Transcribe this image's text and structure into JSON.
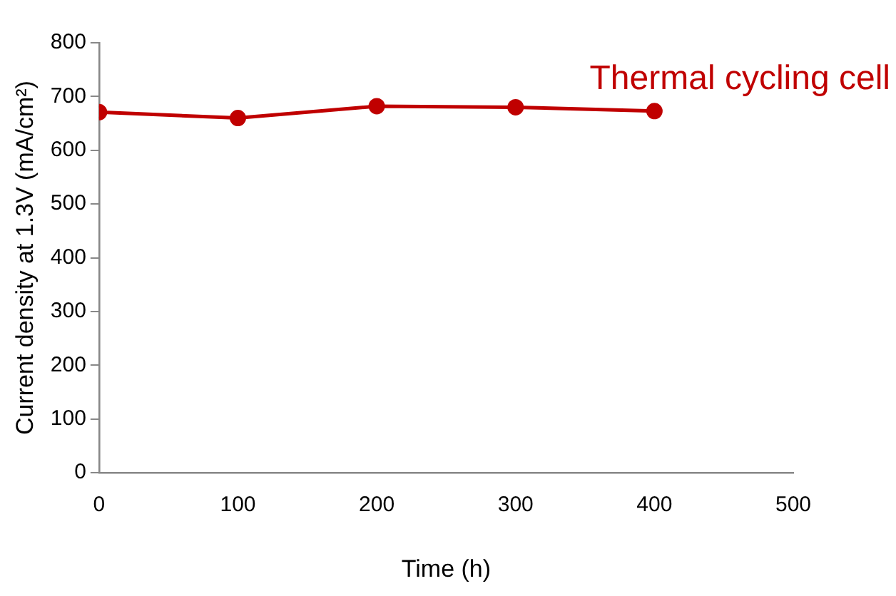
{
  "chart_data": {
    "type": "line",
    "xlabel": "Time (h)",
    "ylabel": "Current density at 1.3V (mA/cm²)",
    "x": [
      0,
      100,
      200,
      300,
      400
    ],
    "series": [
      {
        "name": "Thermal cycling cell",
        "color": "#c00000",
        "values": [
          671,
          660,
          682,
          680,
          673
        ]
      }
    ],
    "xlim": [
      0,
      500
    ],
    "xticks": [
      0,
      100,
      200,
      300,
      400,
      500
    ],
    "ylim": [
      0,
      800
    ],
    "yticks": [
      0,
      100,
      200,
      300,
      400,
      500,
      600,
      700,
      800
    ],
    "grid": false,
    "legend": false,
    "marker": "circle",
    "line_style": "solid"
  }
}
